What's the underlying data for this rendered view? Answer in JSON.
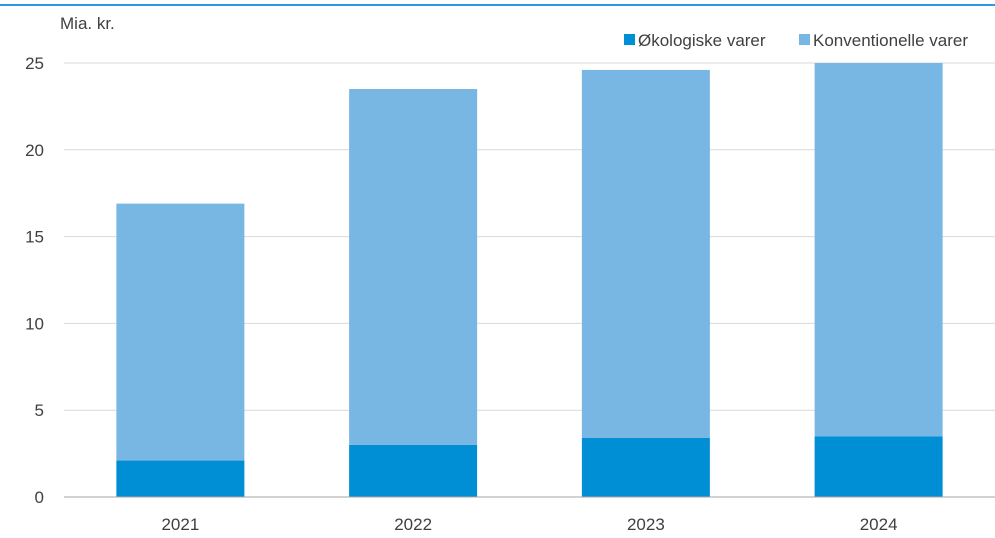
{
  "chart_data": {
    "type": "bar",
    "stacked": true,
    "unit_label": "Mia. kr.",
    "categories": [
      "2021",
      "2022",
      "2023",
      "2024"
    ],
    "series": [
      {
        "name": "Økologiske varer",
        "values": [
          2.1,
          3.0,
          3.4,
          3.5
        ]
      },
      {
        "name": "Konventionelle varer",
        "values": [
          14.8,
          20.5,
          21.2,
          21.5
        ]
      }
    ],
    "ylim": [
      0,
      25
    ],
    "yticks": [
      0,
      5,
      10,
      15,
      20,
      25
    ],
    "grid": true,
    "legend_position": "top-right",
    "colors": {
      "Økologiske varer": "#008fd5",
      "Konventionelle varer": "#78b6e4",
      "top_rule": "#2b9be0",
      "grid": "#d9d9d9",
      "axis": "#a6a6a6"
    }
  }
}
